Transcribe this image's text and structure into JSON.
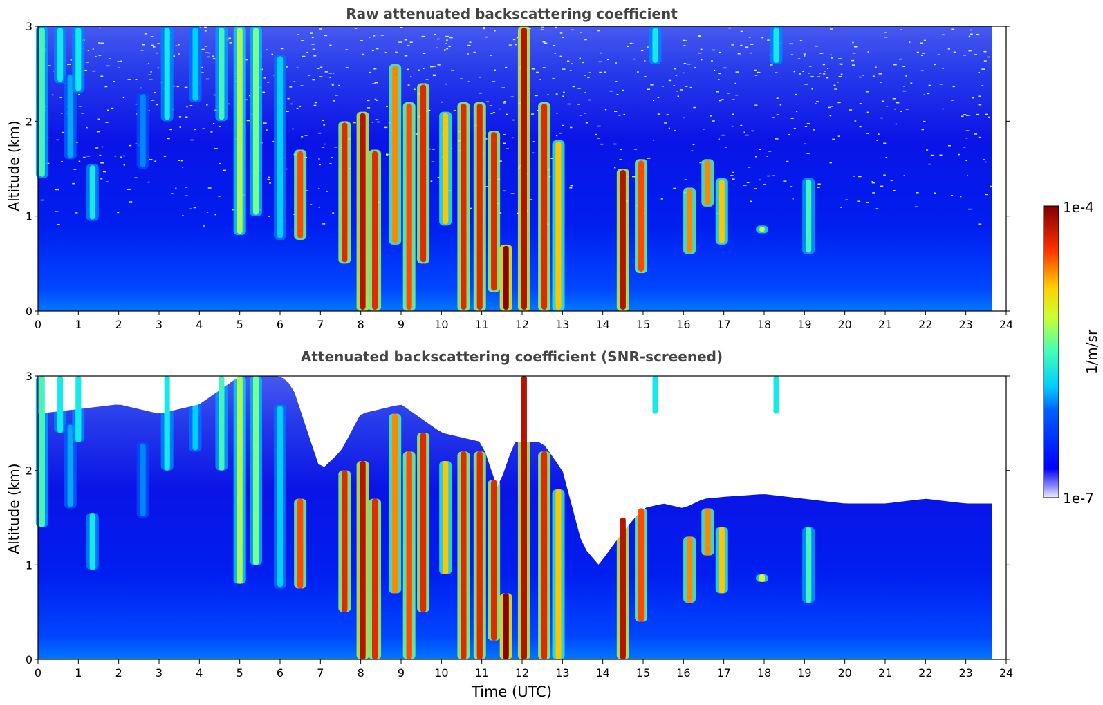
{
  "chart_data": [
    {
      "type": "heatmap",
      "title": "Raw attenuated backscattering coefficient",
      "ylabel": "Altitude (km)",
      "xlabel": "",
      "xlim": [
        0,
        24
      ],
      "ylim": [
        0,
        3
      ],
      "x_ticks": [
        "0",
        "1",
        "2",
        "3",
        "4",
        "5",
        "6",
        "7",
        "8",
        "9",
        "10",
        "11",
        "12",
        "13",
        "14",
        "15",
        "16",
        "17",
        "18",
        "19",
        "20",
        "21",
        "22",
        "23",
        "24"
      ],
      "y_ticks": [
        "0",
        "1",
        "2",
        "3"
      ],
      "data_end_time": 23.65,
      "screened": false,
      "features": [
        {
          "t": 0.1,
          "bottom": 1.4,
          "top": 3.0,
          "peak": 0.55
        },
        {
          "t": 0.55,
          "bottom": 2.4,
          "top": 3.0,
          "peak": 0.5
        },
        {
          "t": 0.8,
          "bottom": 1.6,
          "top": 2.5,
          "peak": 0.4
        },
        {
          "t": 1.0,
          "bottom": 2.3,
          "top": 3.0,
          "peak": 0.5
        },
        {
          "t": 1.35,
          "bottom": 0.95,
          "top": 1.55,
          "peak": 0.5
        },
        {
          "t": 2.6,
          "bottom": 1.5,
          "top": 2.3,
          "peak": 0.35
        },
        {
          "t": 3.2,
          "bottom": 2.0,
          "top": 3.0,
          "peak": 0.5
        },
        {
          "t": 3.9,
          "bottom": 2.2,
          "top": 3.0,
          "peak": 0.45
        },
        {
          "t": 4.55,
          "bottom": 2.0,
          "top": 3.0,
          "peak": 0.55
        },
        {
          "t": 5.0,
          "bottom": 0.8,
          "top": 3.0,
          "peak": 0.65
        },
        {
          "t": 5.4,
          "bottom": 1.0,
          "top": 3.0,
          "peak": 0.6
        },
        {
          "t": 6.0,
          "bottom": 0.75,
          "top": 2.7,
          "peak": 0.45
        },
        {
          "t": 6.5,
          "bottom": 0.75,
          "top": 1.7,
          "peak": 0.85
        },
        {
          "t": 7.6,
          "bottom": 0.5,
          "top": 2.0,
          "peak": 0.9
        },
        {
          "t": 8.05,
          "bottom": 0.0,
          "top": 2.1,
          "peak": 0.95
        },
        {
          "t": 8.35,
          "bottom": 0.0,
          "top": 1.7,
          "peak": 0.9
        },
        {
          "t": 8.85,
          "bottom": 0.7,
          "top": 2.6,
          "peak": 0.8
        },
        {
          "t": 9.2,
          "bottom": 0.0,
          "top": 2.2,
          "peak": 0.85
        },
        {
          "t": 9.55,
          "bottom": 0.5,
          "top": 2.4,
          "peak": 0.9
        },
        {
          "t": 10.1,
          "bottom": 0.9,
          "top": 2.1,
          "peak": 0.75
        },
        {
          "t": 10.55,
          "bottom": 0.0,
          "top": 2.2,
          "peak": 0.9
        },
        {
          "t": 10.95,
          "bottom": 0.0,
          "top": 2.2,
          "peak": 0.9
        },
        {
          "t": 11.3,
          "bottom": 0.2,
          "top": 1.9,
          "peak": 0.9
        },
        {
          "t": 11.6,
          "bottom": 0.0,
          "top": 0.7,
          "peak": 1.0
        },
        {
          "t": 12.05,
          "bottom": 0.0,
          "top": 3.0,
          "peak": 0.95
        },
        {
          "t": 12.55,
          "bottom": 0.0,
          "top": 2.2,
          "peak": 0.9
        },
        {
          "t": 12.9,
          "bottom": 0.0,
          "top": 1.8,
          "peak": 0.75
        },
        {
          "t": 14.5,
          "bottom": 0.0,
          "top": 1.5,
          "peak": 0.95
        },
        {
          "t": 14.95,
          "bottom": 0.4,
          "top": 1.6,
          "peak": 0.85
        },
        {
          "t": 15.3,
          "bottom": 2.6,
          "top": 3.0,
          "peak": 0.5
        },
        {
          "t": 16.15,
          "bottom": 0.6,
          "top": 1.3,
          "peak": 0.8
        },
        {
          "t": 16.6,
          "bottom": 1.1,
          "top": 1.6,
          "peak": 0.8
        },
        {
          "t": 16.95,
          "bottom": 0.7,
          "top": 1.4,
          "peak": 0.75
        },
        {
          "t": 17.95,
          "bottom": 0.82,
          "top": 0.9,
          "peak": 0.7
        },
        {
          "t": 18.3,
          "bottom": 2.6,
          "top": 3.0,
          "peak": 0.5
        },
        {
          "t": 19.1,
          "bottom": 0.6,
          "top": 1.4,
          "peak": 0.55
        }
      ]
    },
    {
      "type": "heatmap",
      "title": "Attenuated backscattering coefficient (SNR-screened)",
      "ylabel": "Altitude (km)",
      "xlabel": "Time (UTC)",
      "xlim": [
        0,
        24
      ],
      "ylim": [
        0,
        3
      ],
      "x_ticks": [
        "0",
        "1",
        "2",
        "3",
        "4",
        "5",
        "6",
        "7",
        "8",
        "9",
        "10",
        "11",
        "12",
        "13",
        "14",
        "15",
        "16",
        "17",
        "18",
        "19",
        "20",
        "21",
        "22",
        "23",
        "24"
      ],
      "y_ticks": [
        "0",
        "1",
        "2",
        "3"
      ],
      "data_end_time": 23.65,
      "screened": true,
      "features": [
        {
          "t": 0.1,
          "bottom": 1.4,
          "top": 3.0,
          "peak": 0.55
        },
        {
          "t": 0.55,
          "bottom": 2.4,
          "top": 3.0,
          "peak": 0.5
        },
        {
          "t": 0.8,
          "bottom": 1.6,
          "top": 2.5,
          "peak": 0.4
        },
        {
          "t": 1.0,
          "bottom": 2.3,
          "top": 3.0,
          "peak": 0.5
        },
        {
          "t": 1.35,
          "bottom": 0.95,
          "top": 1.55,
          "peak": 0.5
        },
        {
          "t": 2.6,
          "bottom": 1.5,
          "top": 2.3,
          "peak": 0.35
        },
        {
          "t": 3.2,
          "bottom": 2.0,
          "top": 3.0,
          "peak": 0.5
        },
        {
          "t": 3.9,
          "bottom": 2.2,
          "top": 3.0,
          "peak": 0.45
        },
        {
          "t": 4.55,
          "bottom": 2.0,
          "top": 3.0,
          "peak": 0.55
        },
        {
          "t": 5.0,
          "bottom": 0.8,
          "top": 3.0,
          "peak": 0.65
        },
        {
          "t": 5.4,
          "bottom": 1.0,
          "top": 3.0,
          "peak": 0.6
        },
        {
          "t": 6.0,
          "bottom": 0.75,
          "top": 2.7,
          "peak": 0.45
        },
        {
          "t": 6.5,
          "bottom": 0.75,
          "top": 1.7,
          "peak": 0.85
        },
        {
          "t": 7.6,
          "bottom": 0.5,
          "top": 2.0,
          "peak": 0.9
        },
        {
          "t": 8.05,
          "bottom": 0.0,
          "top": 2.1,
          "peak": 0.95
        },
        {
          "t": 8.35,
          "bottom": 0.0,
          "top": 1.7,
          "peak": 0.9
        },
        {
          "t": 8.85,
          "bottom": 0.7,
          "top": 2.6,
          "peak": 0.8
        },
        {
          "t": 9.2,
          "bottom": 0.0,
          "top": 2.2,
          "peak": 0.85
        },
        {
          "t": 9.55,
          "bottom": 0.5,
          "top": 2.4,
          "peak": 0.9
        },
        {
          "t": 10.1,
          "bottom": 0.9,
          "top": 2.1,
          "peak": 0.75
        },
        {
          "t": 10.55,
          "bottom": 0.0,
          "top": 2.2,
          "peak": 0.9
        },
        {
          "t": 10.95,
          "bottom": 0.0,
          "top": 2.2,
          "peak": 0.9
        },
        {
          "t": 11.3,
          "bottom": 0.2,
          "top": 1.9,
          "peak": 0.9
        },
        {
          "t": 11.6,
          "bottom": 0.0,
          "top": 0.7,
          "peak": 1.0
        },
        {
          "t": 12.05,
          "bottom": 0.0,
          "top": 3.0,
          "peak": 0.95
        },
        {
          "t": 12.55,
          "bottom": 0.0,
          "top": 2.2,
          "peak": 0.9
        },
        {
          "t": 12.9,
          "bottom": 0.0,
          "top": 1.8,
          "peak": 0.75
        },
        {
          "t": 14.5,
          "bottom": 0.0,
          "top": 1.5,
          "peak": 0.95
        },
        {
          "t": 14.95,
          "bottom": 0.4,
          "top": 1.6,
          "peak": 0.85
        },
        {
          "t": 15.3,
          "bottom": 2.6,
          "top": 3.0,
          "peak": 0.5
        },
        {
          "t": 16.15,
          "bottom": 0.6,
          "top": 1.3,
          "peak": 0.8
        },
        {
          "t": 16.6,
          "bottom": 1.1,
          "top": 1.6,
          "peak": 0.8
        },
        {
          "t": 16.95,
          "bottom": 0.7,
          "top": 1.4,
          "peak": 0.75
        },
        {
          "t": 17.95,
          "bottom": 0.82,
          "top": 0.9,
          "peak": 0.7
        },
        {
          "t": 18.3,
          "bottom": 2.6,
          "top": 3.0,
          "peak": 0.5
        },
        {
          "t": 19.1,
          "bottom": 0.6,
          "top": 1.4,
          "peak": 0.55
        }
      ],
      "screen_limit_km": [
        [
          0,
          2.6
        ],
        [
          2,
          2.7
        ],
        [
          3,
          2.6
        ],
        [
          4,
          2.7
        ],
        [
          5,
          3.0
        ],
        [
          6,
          3.0
        ],
        [
          6.3,
          2.9
        ],
        [
          7.0,
          2.0
        ],
        [
          7.5,
          2.2
        ],
        [
          8.0,
          2.6
        ],
        [
          9.0,
          2.7
        ],
        [
          10.0,
          2.4
        ],
        [
          11.0,
          2.3
        ],
        [
          11.4,
          1.8
        ],
        [
          11.8,
          2.3
        ],
        [
          12.5,
          2.3
        ],
        [
          13.0,
          2.0
        ],
        [
          13.5,
          1.2
        ],
        [
          13.9,
          1.0
        ],
        [
          14.5,
          1.35
        ],
        [
          15.0,
          1.6
        ],
        [
          15.5,
          1.65
        ],
        [
          16.0,
          1.6
        ],
        [
          16.5,
          1.7
        ],
        [
          17.0,
          1.72
        ],
        [
          18.0,
          1.75
        ],
        [
          19.0,
          1.7
        ],
        [
          20.0,
          1.65
        ],
        [
          21.0,
          1.65
        ],
        [
          22.0,
          1.7
        ],
        [
          23.0,
          1.65
        ],
        [
          23.65,
          1.65
        ]
      ]
    }
  ],
  "colorbar": {
    "label": "1/m/sr",
    "max_label": "1e-4",
    "min_label": "1e-7",
    "scale": "log",
    "range": [
      1e-07,
      0.0001
    ],
    "colormap": "jet"
  }
}
